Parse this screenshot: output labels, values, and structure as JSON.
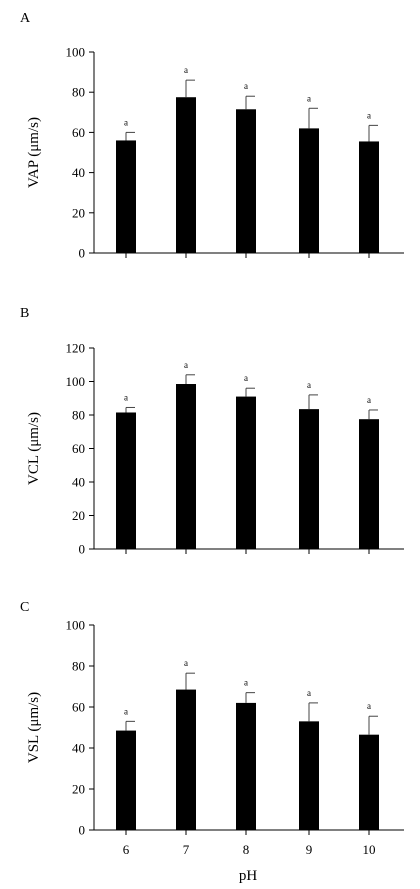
{
  "colors": {
    "bar": "#000000",
    "axis": "#000000",
    "error": "#444444"
  },
  "chart_data": [
    {
      "type": "bar",
      "panel_label": "A",
      "categories": [
        "6",
        "7",
        "8",
        "9",
        "10"
      ],
      "values": [
        56,
        77.5,
        71.5,
        62,
        55.5
      ],
      "errors": [
        4,
        8.5,
        6.5,
        10,
        8
      ],
      "significance": [
        "a",
        "a",
        "a",
        "a",
        "a"
      ],
      "ylabel": "VAP (μm/s)",
      "xlabel": "",
      "ylim": [
        0,
        100
      ],
      "yticks": [
        0,
        20,
        40,
        60,
        80,
        100
      ],
      "show_x_tick_labels": false,
      "grid": false
    },
    {
      "type": "bar",
      "panel_label": "B",
      "categories": [
        "6",
        "7",
        "8",
        "9",
        "10"
      ],
      "values": [
        81.5,
        98.5,
        91,
        83.5,
        77.5
      ],
      "errors": [
        3,
        5.5,
        5,
        8.5,
        5.5
      ],
      "significance": [
        "a",
        "a",
        "a",
        "a",
        "a"
      ],
      "ylabel": "VCL (μm/s)",
      "xlabel": "",
      "ylim": [
        0,
        120
      ],
      "yticks": [
        0,
        20,
        40,
        60,
        80,
        100,
        120
      ],
      "show_x_tick_labels": false,
      "grid": false
    },
    {
      "type": "bar",
      "panel_label": "C",
      "categories": [
        "6",
        "7",
        "8",
        "9",
        "10"
      ],
      "values": [
        48.5,
        68.5,
        62,
        53,
        46.5
      ],
      "errors": [
        4.5,
        8,
        5,
        9,
        9
      ],
      "significance": [
        "a",
        "a",
        "a",
        "a",
        "a"
      ],
      "ylabel": "VSL (μm/s)",
      "xlabel": "pH",
      "ylim": [
        0,
        100
      ],
      "yticks": [
        0,
        20,
        40,
        60,
        80,
        100
      ],
      "show_x_tick_labels": true,
      "grid": false
    }
  ]
}
